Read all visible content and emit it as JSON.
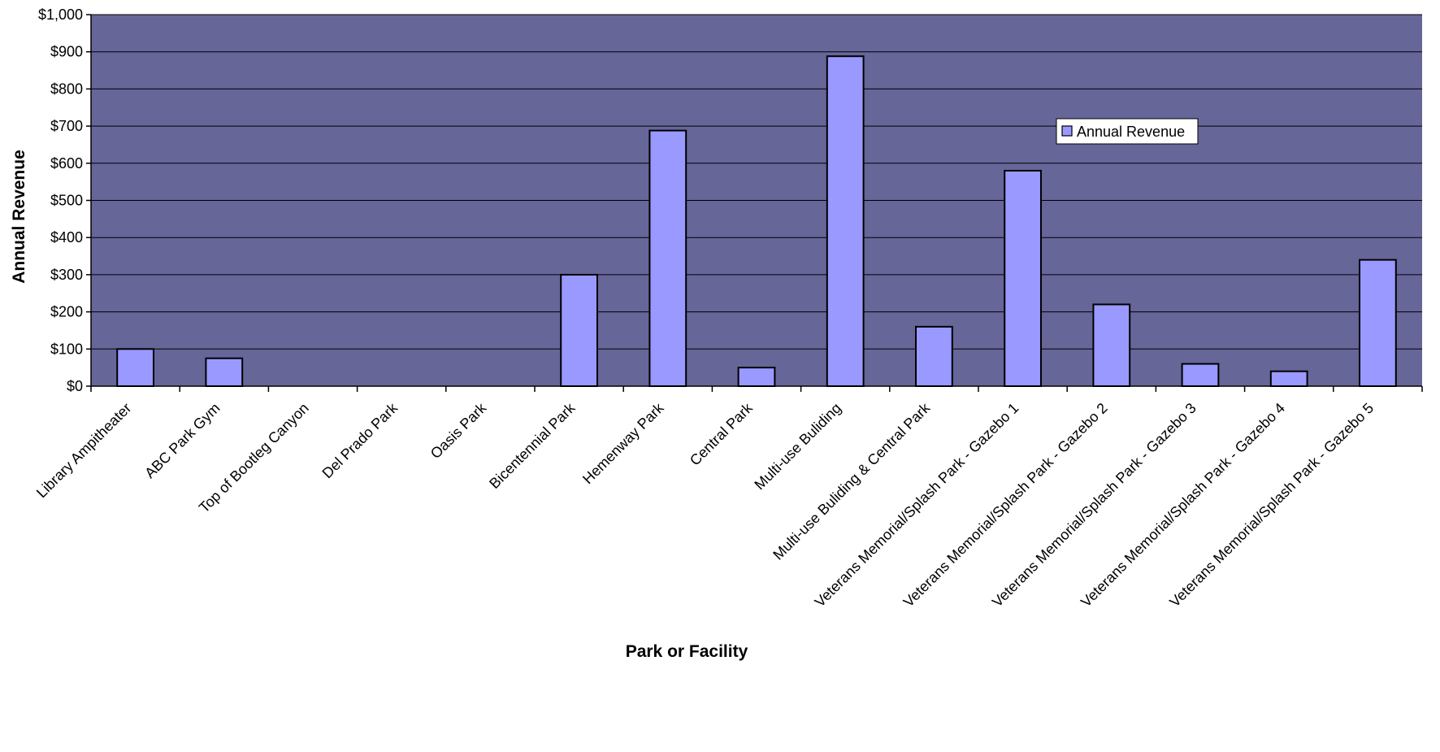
{
  "chart_data": {
    "type": "bar",
    "title": "",
    "xlabel": "Park or Facility",
    "ylabel": "Annual Revenue",
    "ylim": [
      0,
      1000
    ],
    "yticks": [
      0,
      100,
      200,
      300,
      400,
      500,
      600,
      700,
      800,
      900,
      1000
    ],
    "ytick_labels": [
      "$0",
      "$100",
      "$200",
      "$300",
      "$400",
      "$500",
      "$600",
      "$700",
      "$800",
      "$900",
      "$1,000"
    ],
    "categories": [
      "Library Ampitheater",
      "ABC Park Gym",
      "Top of Bootleg Canyon",
      "Del Prado Park",
      "Oasis Park",
      "Bicentennial Park",
      "Hemenway Park",
      "Central Park",
      "Multi-use Buliding",
      "Multi-use Buliding & Central Park",
      "Veterans Memorial/Splash Park - Gazebo 1",
      "Veterans Memorial/Splash Park - Gazebo 2",
      "Veterans Memorial/Splash Park - Gazebo 3",
      "Veterans Memorial/Splash Park - Gazebo 4",
      "Veterans Memorial/Splash Park - Gazebo 5"
    ],
    "series": [
      {
        "name": "Annual Revenue",
        "values": [
          100,
          75,
          0,
          0,
          0,
          300,
          688,
          50,
          888,
          160,
          580,
          220,
          60,
          40,
          340
        ]
      }
    ],
    "grid": true,
    "legend_position": "right",
    "colors": {
      "plot_background": "#666699",
      "bar_fill": "#9999FF",
      "bar_stroke": "#000000",
      "gridline": "#000000"
    }
  }
}
